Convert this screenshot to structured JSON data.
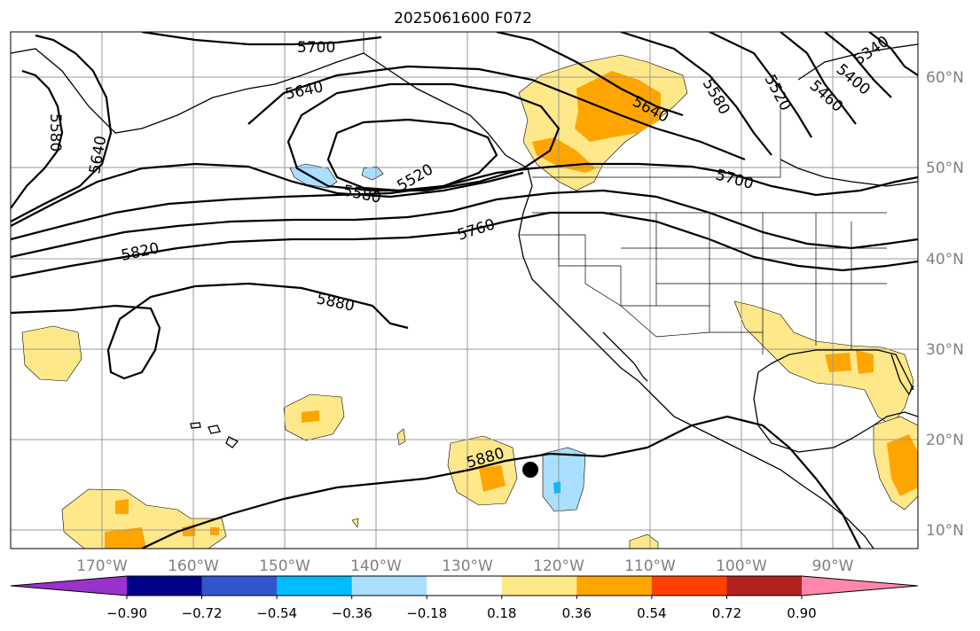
{
  "title": "2025061600 F072",
  "lon_labels": [
    "170°W",
    "160°W",
    "150°W",
    "140°W",
    "130°W",
    "120°W",
    "110°W",
    "100°W",
    "90°W"
  ],
  "lat_labels": [
    "60°N",
    "50°N",
    "40°N",
    "30°N",
    "20°N",
    "10°N"
  ],
  "contour_labels": [
    "5700",
    "5640",
    "5580",
    "5640",
    "5580",
    "5520",
    "5640",
    "5580",
    "5520",
    "5460",
    "5400",
    "5340",
    "5700",
    "5760",
    "5820",
    "5880",
    "5880"
  ],
  "colorbar": {
    "colors": [
      "#9933cc",
      "#000088",
      "#3355cc",
      "#00bbff",
      "#aadfff",
      "#ffffff",
      "#ffe88a",
      "#ffa500",
      "#ff4000",
      "#b22222",
      "#ff88aa"
    ],
    "tick_labels": [
      "−0.90",
      "−0.72",
      "−0.54",
      "−0.36",
      "−0.18",
      "0.18",
      "0.36",
      "0.54",
      "0.72",
      "0.90"
    ]
  },
  "marker": "storm-center-dot"
}
